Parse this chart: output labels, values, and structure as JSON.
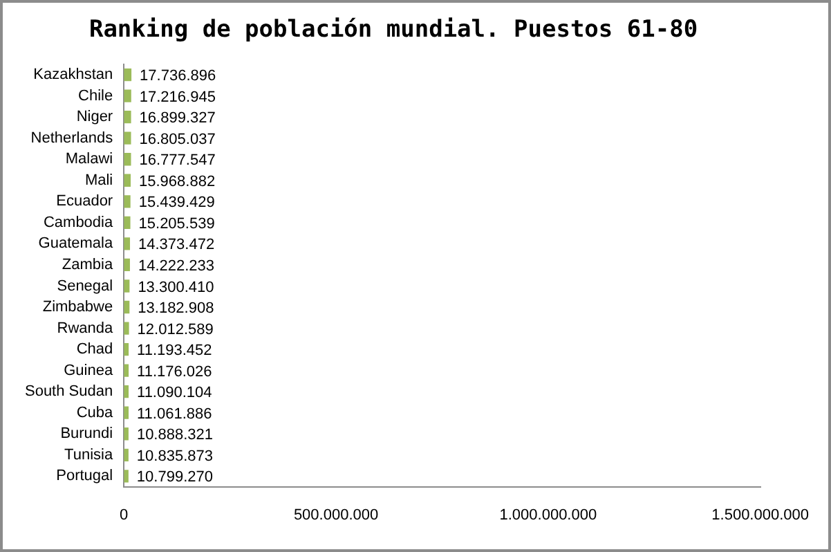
{
  "chart_data": {
    "type": "bar",
    "orientation": "horizontal",
    "title": "Ranking de población mundial. Puestos 61-80",
    "categories": [
      "Kazakhstan",
      "Chile",
      "Niger",
      "Netherlands",
      "Malawi",
      "Mali",
      "Ecuador",
      "Cambodia",
      "Guatemala",
      "Zambia",
      "Senegal",
      "Zimbabwe",
      "Rwanda",
      "Chad",
      "Guinea",
      "South Sudan",
      "Cuba",
      "Burundi",
      "Tunisia",
      "Portugal"
    ],
    "values": [
      17736896,
      17216945,
      16899327,
      16805037,
      16777547,
      15968882,
      15439429,
      15205539,
      14373472,
      14222233,
      13300410,
      13182908,
      12012589,
      11193452,
      11176026,
      11090104,
      11061886,
      10888321,
      10835873,
      10799270
    ],
    "value_labels": [
      "17.736.896",
      "17.216.945",
      "16.899.327",
      "16.805.037",
      "16.777.547",
      "15.968.882",
      "15.439.429",
      "15.205.539",
      "14.373.472",
      "14.222.233",
      "13.300.410",
      "13.182.908",
      "12.012.589",
      "11.193.452",
      "11.176.026",
      "11.090.104",
      "11.061.886",
      "10.888.321",
      "10.835.873",
      "10.799.270"
    ],
    "color": "#9bbb59",
    "xlim": [
      0,
      1500000000
    ],
    "xticks": [
      0,
      {
        "value": 500000000,
        "label": "500.000.000"
      },
      {
        "value": 1000000000,
        "label": "1.000.000.000"
      },
      {
        "value": 1500000000,
        "label": "1.500.000.000"
      }
    ],
    "grid": false,
    "legend": false
  }
}
